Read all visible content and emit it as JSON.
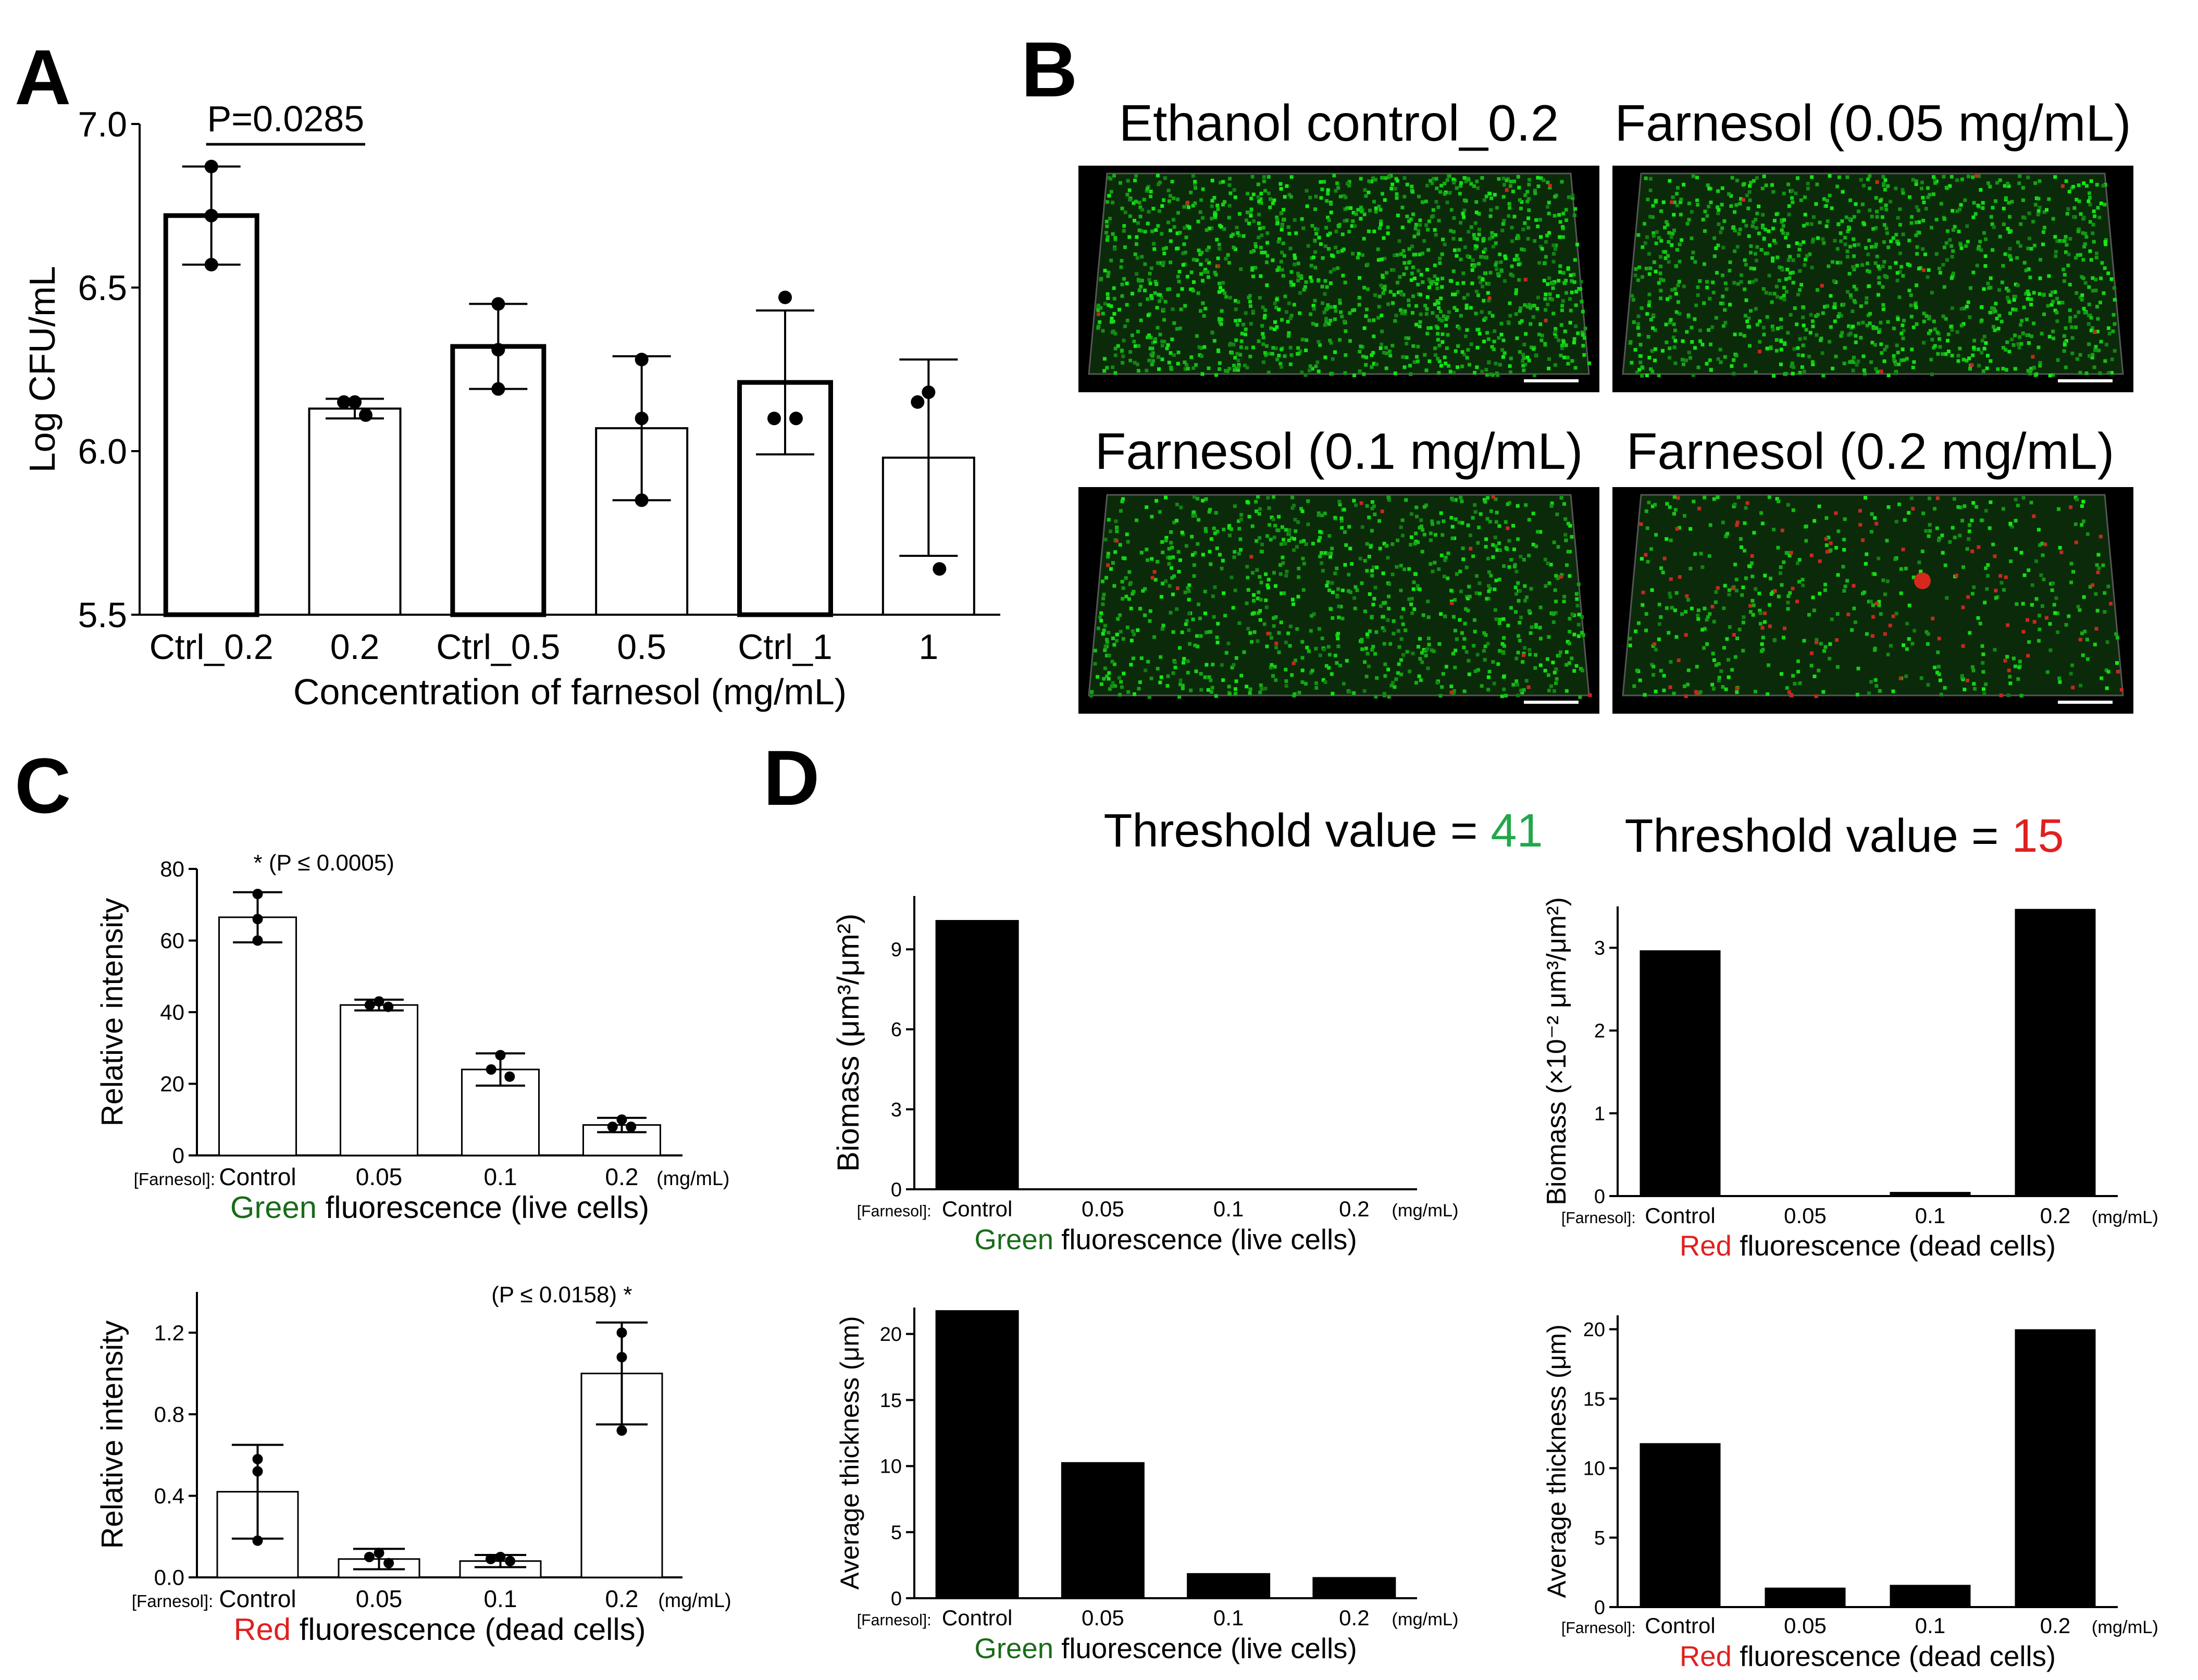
{
  "figure": {
    "panel_letters": [
      "A",
      "B",
      "C",
      "D"
    ],
    "colors": {
      "green_label": "#1a6b1a",
      "red_label": "#e02020",
      "green_value": "#22a84a",
      "red_value": "#e02020",
      "bar_fill_dark": "#000000",
      "bar_fill_light": "#ffffff"
    }
  },
  "panel_b": {
    "titles": [
      "Ethanol control_0.2",
      "Farnesol (0.05 mg/mL)",
      "Farnesol (0.1 mg/mL)",
      "Farnesol (0.2 mg/mL)"
    ],
    "images": [
      {
        "green_density": 1.0,
        "red_density": 0.02
      },
      {
        "green_density": 0.85,
        "red_density": 0.03
      },
      {
        "green_density": 0.7,
        "red_density": 0.05
      },
      {
        "green_density": 0.35,
        "red_density": 0.25
      }
    ]
  },
  "panel_d": {
    "threshold_left_text": "Threshold value = ",
    "threshold_left_value": "41",
    "threshold_right_text": "Threshold value = ",
    "threshold_right_value": "15"
  },
  "chart_data": [
    {
      "id": "A",
      "type": "bar",
      "title": "",
      "categories": [
        "Ctrl_0.2",
        "0.2",
        "Ctrl_0.5",
        "0.5",
        "Ctrl_1",
        "1"
      ],
      "values": [
        6.72,
        6.13,
        6.32,
        6.07,
        6.21,
        5.98
      ],
      "errors": [
        0.15,
        0.03,
        0.13,
        0.22,
        0.22,
        0.3
      ],
      "points": [
        [
          6.87,
          6.72,
          6.57
        ],
        [
          6.15,
          6.15,
          6.11
        ],
        [
          6.45,
          6.31,
          6.19
        ],
        [
          6.28,
          6.1,
          5.85
        ],
        [
          6.47,
          6.1,
          6.1
        ],
        [
          6.18,
          6.15,
          5.64
        ]
      ],
      "bold_bars": [
        0,
        2,
        4
      ],
      "xlabel": "Concentration of farnesol (mg/mL)",
      "ylabel": "Log CFU/mL",
      "ylim": [
        5.5,
        7.0
      ],
      "yticks": [
        "5.5",
        "6.0",
        "6.5",
        "7.0"
      ],
      "annotation": "P=0.0285",
      "annotation_span": [
        0,
        1
      ]
    },
    {
      "id": "C-green",
      "type": "bar",
      "categories": [
        "Control",
        "0.05",
        "0.1",
        "0.2"
      ],
      "values": [
        66.5,
        42,
        24,
        8.5
      ],
      "errors": [
        7,
        1.5,
        4.5,
        2
      ],
      "points": [
        [
          73,
          66,
          60
        ],
        [
          43,
          42,
          41.5
        ],
        [
          28,
          24,
          22
        ],
        [
          10,
          8,
          8
        ]
      ],
      "axis_prefix": "[Farnesol]:",
      "unit_suffix": "(mg/mL)",
      "xlabel_colored": "Green",
      "xlabel_rest": " fluorescence (live cells)",
      "ylabel": "Relative intensity",
      "ylim": [
        0,
        80
      ],
      "yticks": [
        "0",
        "20",
        "40",
        "60",
        "80"
      ],
      "annotation": "* (P ≤ 0.0005)"
    },
    {
      "id": "C-red",
      "type": "bar",
      "categories": [
        "Control",
        "0.05",
        "0.1",
        "0.2"
      ],
      "values": [
        0.42,
        0.09,
        0.08,
        1.0
      ],
      "errors": [
        0.23,
        0.05,
        0.03,
        0.25
      ],
      "points": [
        [
          0.58,
          0.52,
          0.18
        ],
        [
          0.12,
          0.1,
          0.07
        ],
        [
          0.1,
          0.09,
          0.08
        ],
        [
          1.2,
          1.08,
          0.72
        ]
      ],
      "axis_prefix": "[Farnesol]:",
      "unit_suffix": "(mg/mL)",
      "xlabel_colored": "Red",
      "xlabel_rest": " fluorescence (dead cells)",
      "ylabel": "Relative intensity",
      "ylim": [
        0,
        1.4
      ],
      "yticks": [
        "0.0",
        "0.4",
        "0.8",
        "1.2"
      ],
      "annotation": "(P ≤ 0.0158) *"
    },
    {
      "id": "D-green-biomass",
      "type": "bar",
      "categories": [
        "Control",
        "0.05",
        "0.1",
        "0.2"
      ],
      "values": [
        10.1,
        0,
        0,
        0
      ],
      "axis_prefix": "[Farnesol]:",
      "unit_suffix": "(mg/mL)",
      "xlabel_colored": "Green",
      "xlabel_rest": " fluorescence (live cells)",
      "ylabel": "Biomass (μm³/μm²)",
      "ylim": [
        0,
        11
      ],
      "yticks": [
        "0",
        "3",
        "6",
        "9"
      ]
    },
    {
      "id": "D-red-biomass",
      "type": "bar",
      "categories": [
        "Control",
        "0.05",
        "0.1",
        "0.2"
      ],
      "values": [
        2.97,
        0,
        0.05,
        3.47
      ],
      "axis_prefix": "[Farnesol]:",
      "unit_suffix": "(mg/mL)",
      "xlabel_colored": "Red",
      "xlabel_rest": " fluorescence (dead cells)",
      "ylabel": "Biomass (×10⁻² μm³/μm²)",
      "ylim": [
        0,
        3.5
      ],
      "yticks": [
        "0",
        "1",
        "2",
        "3"
      ]
    },
    {
      "id": "D-green-thickness",
      "type": "bar",
      "categories": [
        "Control",
        "0.05",
        "0.1",
        "0.2"
      ],
      "values": [
        21.8,
        10.3,
        1.9,
        1.6
      ],
      "axis_prefix": "[Farnesol]:",
      "unit_suffix": "(mg/mL)",
      "xlabel_colored": "Green",
      "xlabel_rest": " fluorescence (live cells)",
      "ylabel": "Average thickness (μm)",
      "ylim": [
        0,
        22
      ],
      "yticks": [
        "0",
        "5",
        "10",
        "15",
        "20"
      ]
    },
    {
      "id": "D-red-thickness",
      "type": "bar",
      "categories": [
        "Control",
        "0.05",
        "0.1",
        "0.2"
      ],
      "values": [
        11.8,
        1.4,
        1.6,
        20
      ],
      "axis_prefix": "[Farnesol]:",
      "unit_suffix": "(mg/mL)",
      "xlabel_colored": "Red",
      "xlabel_rest": " fluorescence (dead cells)",
      "ylabel": "Average thickness (μm)",
      "ylim": [
        0,
        21
      ],
      "yticks": [
        "0",
        "5",
        "10",
        "15",
        "20"
      ]
    }
  ]
}
